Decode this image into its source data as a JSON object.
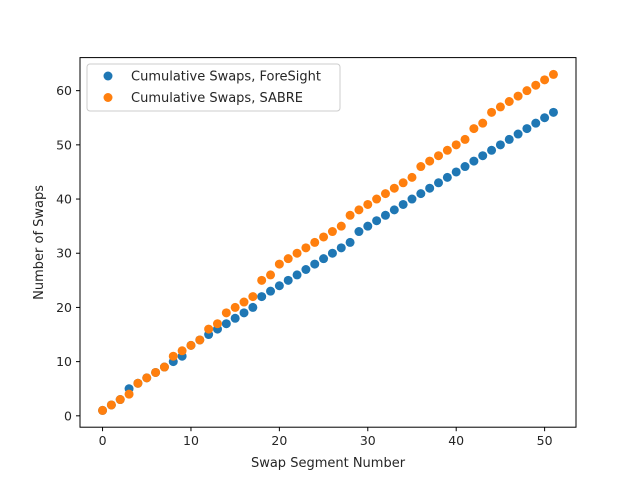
{
  "chart_data": {
    "type": "scatter",
    "title": "",
    "xlabel": "Swap Segment Number",
    "ylabel": "Number of Swaps",
    "xlim": [
      -2.55,
      53.55
    ],
    "ylim": [
      -2.1,
      66.1
    ],
    "xticks": [
      0,
      10,
      20,
      30,
      40,
      50
    ],
    "yticks": [
      0,
      10,
      20,
      30,
      40,
      50,
      60
    ],
    "grid": false,
    "legend_position": "top-left",
    "series": [
      {
        "name": "Cumulative Swaps, ForeSight",
        "color": "#1f77b4",
        "x": [
          0,
          1,
          2,
          3,
          4,
          5,
          6,
          7,
          8,
          9,
          10,
          11,
          12,
          13,
          14,
          15,
          16,
          17,
          18,
          19,
          20,
          21,
          22,
          23,
          24,
          25,
          26,
          27,
          28,
          29,
          30,
          31,
          32,
          33,
          34,
          35,
          36,
          37,
          38,
          39,
          40,
          41,
          42,
          43,
          44,
          45,
          46,
          47,
          48,
          49,
          50,
          51
        ],
        "y": [
          1,
          2,
          3,
          5,
          6,
          7,
          8,
          9,
          10,
          11,
          13,
          14,
          15,
          16,
          17,
          18,
          19,
          20,
          22,
          23,
          24,
          25,
          26,
          27,
          28,
          29,
          30,
          31,
          32,
          34,
          35,
          36,
          37,
          38,
          39,
          40,
          41,
          42,
          43,
          44,
          45,
          46,
          47,
          48,
          49,
          50,
          51,
          52,
          53,
          54,
          55,
          56
        ]
      },
      {
        "name": "Cumulative Swaps, SABRE",
        "color": "#ff7f0e",
        "x": [
          0,
          1,
          2,
          3,
          4,
          5,
          6,
          7,
          8,
          9,
          10,
          11,
          12,
          13,
          14,
          15,
          16,
          17,
          18,
          19,
          20,
          21,
          22,
          23,
          24,
          25,
          26,
          27,
          28,
          29,
          30,
          31,
          32,
          33,
          34,
          35,
          36,
          37,
          38,
          39,
          40,
          41,
          42,
          43,
          44,
          45,
          46,
          47,
          48,
          49,
          50,
          51
        ],
        "y": [
          1,
          2,
          3,
          4,
          6,
          7,
          8,
          9,
          11,
          12,
          13,
          14,
          16,
          17,
          19,
          20,
          21,
          22,
          25,
          26,
          28,
          29,
          30,
          31,
          32,
          33,
          34,
          35,
          37,
          38,
          39,
          40,
          41,
          42,
          43,
          44,
          46,
          47,
          48,
          49,
          50,
          51,
          53,
          54,
          56,
          57,
          58,
          59,
          60,
          61,
          62,
          63
        ]
      }
    ]
  }
}
